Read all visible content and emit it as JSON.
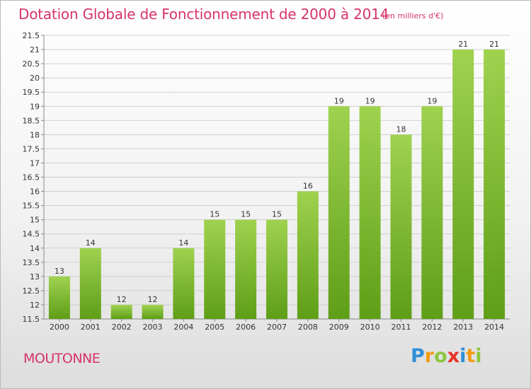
{
  "title": "Dotation Globale de Fonctionnement de 2000 à 2014",
  "subtitle": "(en milliers d'€)",
  "commune": "MOUTONNE",
  "logo": {
    "letters": [
      "P",
      "r",
      "o",
      "x",
      "i",
      "t",
      "i"
    ],
    "colors": [
      "#2f8fd8",
      "#f39c12",
      "#8cc63f",
      "#e8322a",
      "#2f8fd8",
      "#f39c12",
      "#8cc63f"
    ]
  },
  "colors": {
    "bar_top": "#9fd24f",
    "bar_bottom": "#5f9e17",
    "grid": "#cfcfcf",
    "axis_text": "#333333",
    "title": "#d6336c"
  },
  "chart_data": {
    "type": "bar",
    "categories": [
      "2000",
      "2001",
      "2002",
      "2003",
      "2004",
      "2005",
      "2006",
      "2007",
      "2008",
      "2009",
      "2010",
      "2011",
      "2012",
      "2013",
      "2014"
    ],
    "values": [
      13,
      14,
      12,
      12,
      14,
      15,
      15,
      15,
      16,
      19,
      19,
      18,
      19,
      21,
      21
    ],
    "value_labels": [
      "13",
      "14",
      "12",
      "12",
      "14",
      "15",
      "15",
      "15",
      "16",
      "19",
      "19",
      "18",
      "19",
      "21",
      "21"
    ],
    "yticks": [
      "11.5",
      "12",
      "12.5",
      "13",
      "13.5",
      "14",
      "14.5",
      "15",
      "15.5",
      "16",
      "16.5",
      "17",
      "17.5",
      "18",
      "18.5",
      "19",
      "19.5",
      "20",
      "20.5",
      "21",
      "21.5"
    ],
    "ylim": [
      11.5,
      21.5
    ],
    "grid": true
  }
}
